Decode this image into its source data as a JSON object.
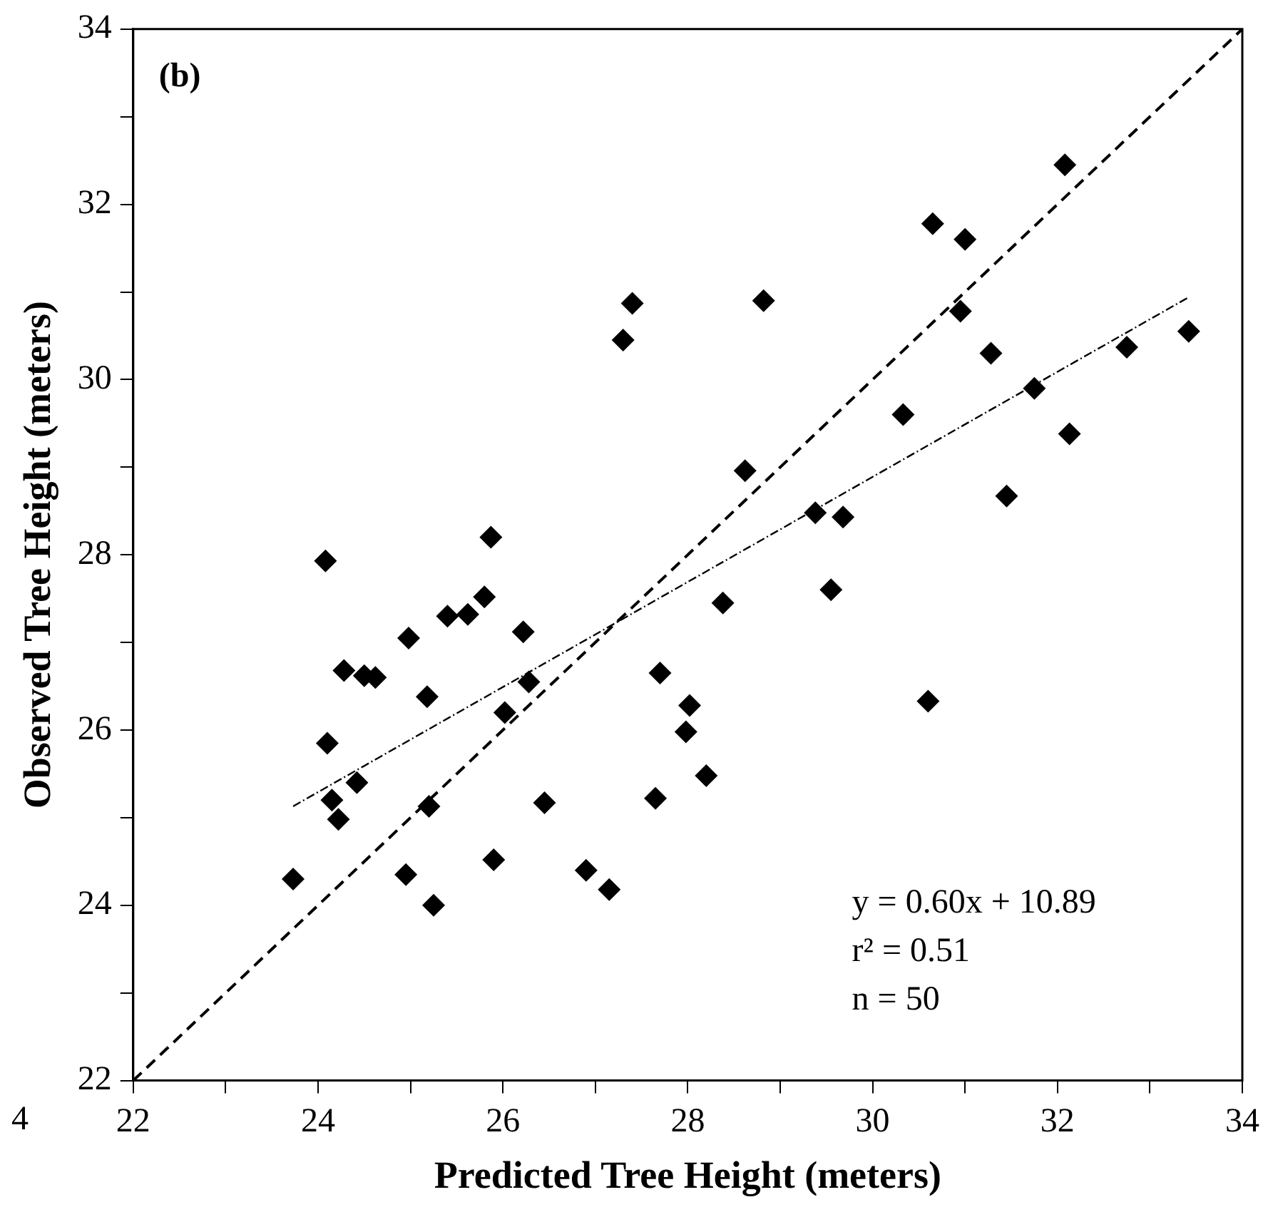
{
  "chart_data": {
    "type": "scatter",
    "xlabel": "Predicted Tree Height (meters)",
    "ylabel": "Observed Tree Height (meters)",
    "xlim": [
      22,
      34
    ],
    "ylim": [
      22,
      34
    ],
    "xticks": [
      22,
      {
        "value": 23,
        "label": null
      },
      24,
      {
        "value": 25,
        "label": null
      },
      26,
      {
        "value": 27,
        "label": null
      },
      28,
      {
        "value": 29,
        "label": null
      },
      30,
      {
        "value": 31,
        "label": null
      },
      32,
      {
        "value": 33,
        "label": null
      },
      34
    ],
    "yticks": [
      22,
      {
        "value": 23,
        "label": null
      },
      24,
      {
        "value": 25,
        "label": null
      },
      26,
      {
        "value": 27,
        "label": null
      },
      28,
      {
        "value": 29,
        "label": null
      },
      30,
      {
        "value": 31,
        "label": null
      },
      32,
      {
        "value": 33,
        "label": null
      },
      34
    ],
    "grid": false,
    "legend": false,
    "annotations": [
      "(b)",
      "y = 0.60x + 10.89",
      "r² = 0.51",
      "n = 50",
      "4"
    ],
    "series": [
      {
        "color": "#000000",
        "marker": "diamond",
        "x": [
          23.73,
          24.08,
          24.1,
          24.15,
          24.22,
          24.28,
          24.42,
          24.5,
          24.62,
          24.95,
          24.98,
          25.18,
          25.2,
          25.25,
          25.4,
          25.62,
          25.8,
          25.87,
          25.9,
          26.02,
          26.22,
          26.28,
          26.45,
          26.9,
          27.15,
          27.3,
          27.4,
          27.65,
          27.7,
          27.98,
          28.02,
          28.2,
          28.38,
          28.62,
          28.82,
          29.38,
          29.55,
          29.68,
          30.33,
          30.6,
          30.65,
          30.95,
          31.0,
          31.28,
          31.45,
          31.75,
          32.08,
          32.13,
          32.75,
          33.42
        ],
        "values": [
          24.3,
          27.93,
          25.85,
          25.2,
          24.98,
          26.68,
          25.4,
          26.62,
          26.6,
          24.35,
          27.05,
          26.38,
          25.13,
          24.0,
          27.3,
          27.32,
          27.52,
          28.2,
          24.52,
          26.2,
          27.12,
          26.55,
          25.17,
          24.4,
          24.18,
          30.45,
          30.87,
          25.22,
          26.65,
          25.98,
          26.28,
          25.48,
          27.45,
          28.96,
          30.9,
          28.48,
          27.6,
          28.43,
          29.6,
          26.33,
          31.78,
          30.78,
          31.6,
          30.3,
          28.67,
          29.9,
          32.45,
          29.38,
          30.37,
          30.55
        ]
      },
      {
        "type": "line",
        "color": "#000000",
        "marker": "none",
        "line_style": "dashed",
        "x": [
          22,
          34
        ],
        "values": [
          22,
          34
        ]
      },
      {
        "type": "line",
        "color": "#000000",
        "marker": "none",
        "line_style": "dotted",
        "x": [
          23.73,
          33.42
        ],
        "values": [
          25.13,
          30.94
        ]
      }
    ]
  }
}
